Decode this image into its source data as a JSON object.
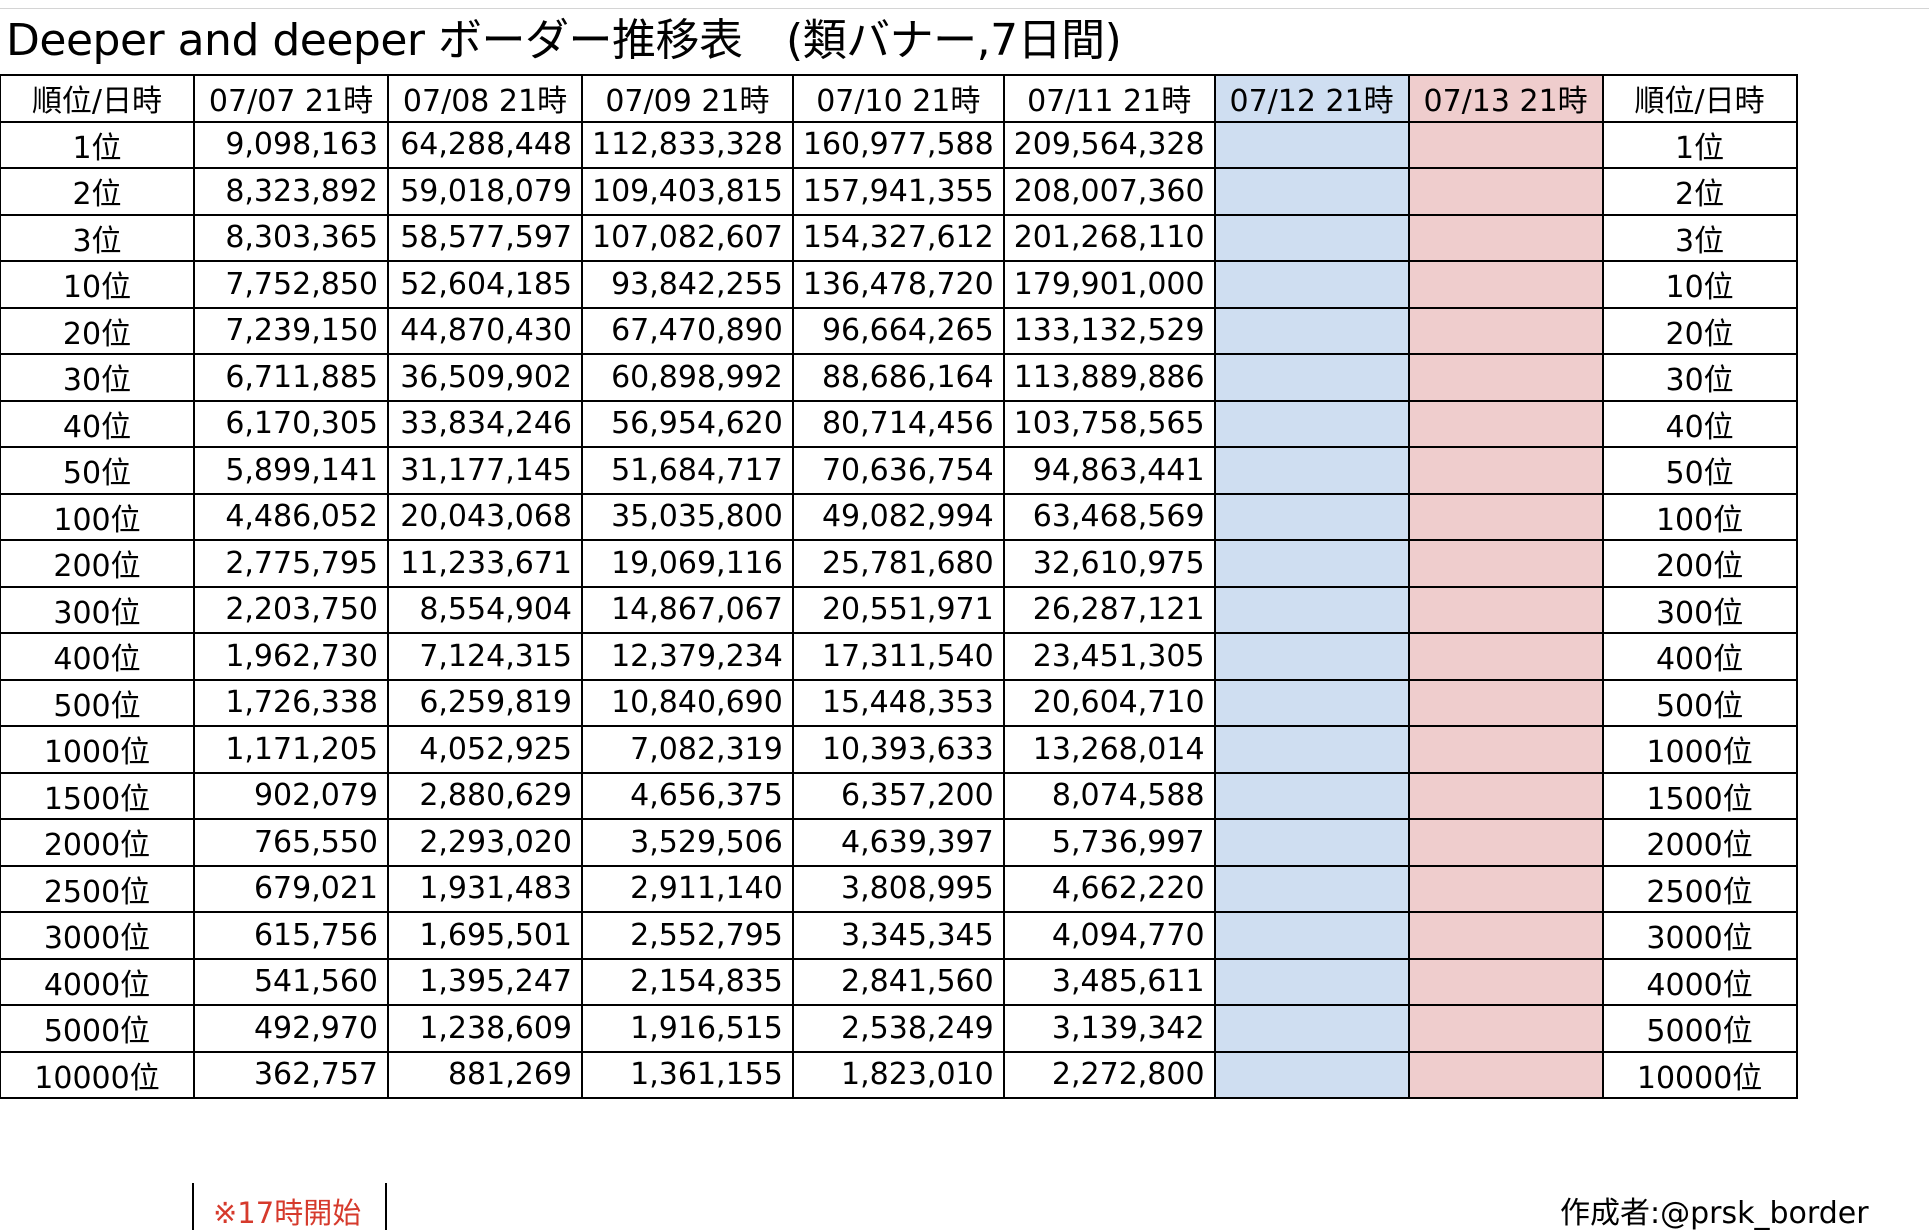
{
  "title": "Deeper and deeper ボーダー推移表　(類バナー,7日間)",
  "header": {
    "rank_label": "順位/日時",
    "dates": [
      "07/07 21時",
      "07/08 21時",
      "07/09 21時",
      "07/10 21時",
      "07/11 21時",
      "07/12 21時",
      "07/13 21時"
    ],
    "rank_label_right": "順位/日時"
  },
  "column_colors": {
    "07/12 21時": "#cfdef1",
    "07/13 21時": "#efcdcd"
  },
  "rows": [
    {
      "rank": "1位",
      "values": [
        "9,098,163",
        "64,288,448",
        "112,833,328",
        "160,977,588",
        "209,564,328",
        "",
        ""
      ]
    },
    {
      "rank": "2位",
      "values": [
        "8,323,892",
        "59,018,079",
        "109,403,815",
        "157,941,355",
        "208,007,360",
        "",
        ""
      ]
    },
    {
      "rank": "3位",
      "values": [
        "8,303,365",
        "58,577,597",
        "107,082,607",
        "154,327,612",
        "201,268,110",
        "",
        ""
      ]
    },
    {
      "rank": "10位",
      "values": [
        "7,752,850",
        "52,604,185",
        "93,842,255",
        "136,478,720",
        "179,901,000",
        "",
        ""
      ]
    },
    {
      "rank": "20位",
      "values": [
        "7,239,150",
        "44,870,430",
        "67,470,890",
        "96,664,265",
        "133,132,529",
        "",
        ""
      ]
    },
    {
      "rank": "30位",
      "values": [
        "6,711,885",
        "36,509,902",
        "60,898,992",
        "88,686,164",
        "113,889,886",
        "",
        ""
      ]
    },
    {
      "rank": "40位",
      "values": [
        "6,170,305",
        "33,834,246",
        "56,954,620",
        "80,714,456",
        "103,758,565",
        "",
        ""
      ]
    },
    {
      "rank": "50位",
      "values": [
        "5,899,141",
        "31,177,145",
        "51,684,717",
        "70,636,754",
        "94,863,441",
        "",
        ""
      ]
    },
    {
      "rank": "100位",
      "values": [
        "4,486,052",
        "20,043,068",
        "35,035,800",
        "49,082,994",
        "63,468,569",
        "",
        ""
      ]
    },
    {
      "rank": "200位",
      "values": [
        "2,775,795",
        "11,233,671",
        "19,069,116",
        "25,781,680",
        "32,610,975",
        "",
        ""
      ]
    },
    {
      "rank": "300位",
      "values": [
        "2,203,750",
        "8,554,904",
        "14,867,067",
        "20,551,971",
        "26,287,121",
        "",
        ""
      ]
    },
    {
      "rank": "400位",
      "values": [
        "1,962,730",
        "7,124,315",
        "12,379,234",
        "17,311,540",
        "23,451,305",
        "",
        ""
      ]
    },
    {
      "rank": "500位",
      "values": [
        "1,726,338",
        "6,259,819",
        "10,840,690",
        "15,448,353",
        "20,604,710",
        "",
        ""
      ]
    },
    {
      "rank": "1000位",
      "values": [
        "1,171,205",
        "4,052,925",
        "7,082,319",
        "10,393,633",
        "13,268,014",
        "",
        ""
      ]
    },
    {
      "rank": "1500位",
      "values": [
        "902,079",
        "2,880,629",
        "4,656,375",
        "6,357,200",
        "8,074,588",
        "",
        ""
      ]
    },
    {
      "rank": "2000位",
      "values": [
        "765,550",
        "2,293,020",
        "3,529,506",
        "4,639,397",
        "5,736,997",
        "",
        ""
      ]
    },
    {
      "rank": "2500位",
      "values": [
        "679,021",
        "1,931,483",
        "2,911,140",
        "3,808,995",
        "4,662,220",
        "",
        ""
      ]
    },
    {
      "rank": "3000位",
      "values": [
        "615,756",
        "1,695,501",
        "2,552,795",
        "3,345,345",
        "4,094,770",
        "",
        ""
      ]
    },
    {
      "rank": "4000位",
      "values": [
        "541,560",
        "1,395,247",
        "2,154,835",
        "2,841,560",
        "3,485,611",
        "",
        ""
      ]
    },
    {
      "rank": "5000位",
      "values": [
        "492,970",
        "1,238,609",
        "1,916,515",
        "2,538,249",
        "3,139,342",
        "",
        ""
      ]
    },
    {
      "rank": "10000位",
      "values": [
        "362,757",
        "881,269",
        "1,361,155",
        "1,823,010",
        "2,272,800",
        "",
        ""
      ]
    }
  ],
  "footnote": "※17時開始",
  "note_color": "#d63a2c",
  "author": "作成者:@prsk_border"
}
